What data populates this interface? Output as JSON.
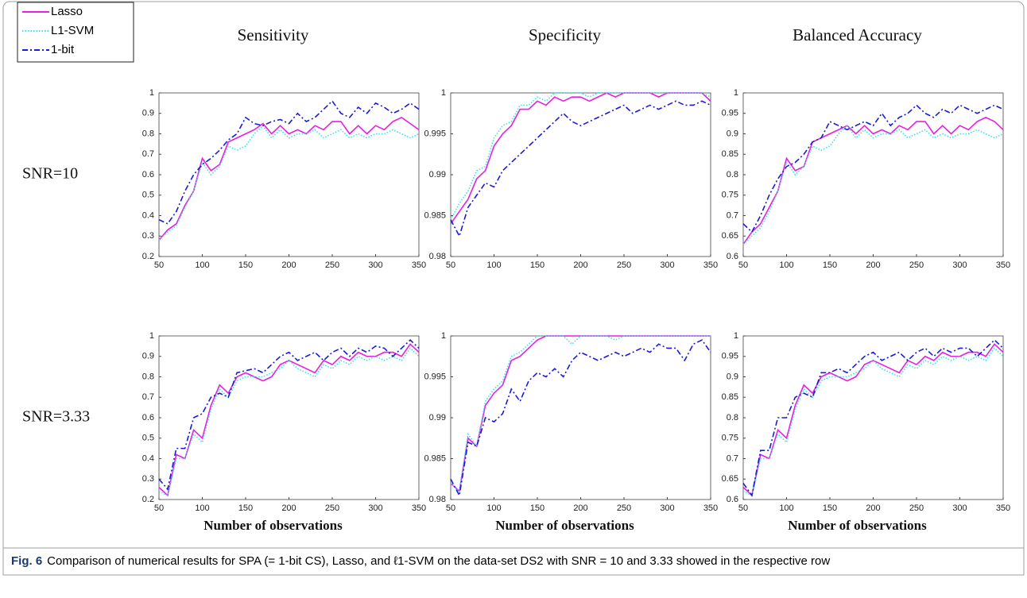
{
  "caption": {
    "label": "Fig. 6",
    "text": "Comparison of numerical results for SPA (= 1-bit CS), Lasso, and ℓ1-SVM on the data-set DS2 with SNR = 10 and 3.33 showed in the respective row"
  },
  "chart_data": [
    {
      "type": "line",
      "title": "Sensitivity",
      "row_label": "SNR=10",
      "x": [
        50,
        60,
        70,
        80,
        90,
        100,
        110,
        120,
        130,
        140,
        150,
        160,
        170,
        180,
        190,
        200,
        210,
        220,
        230,
        240,
        250,
        260,
        270,
        280,
        290,
        300,
        310,
        320,
        330,
        340,
        350
      ],
      "xlim": [
        50,
        350
      ],
      "xticks": [
        50,
        100,
        150,
        200,
        250,
        300,
        350
      ],
      "ylim": [
        0.2,
        1
      ],
      "yticks": [
        0.2,
        0.3,
        0.4,
        0.5,
        0.6,
        0.7,
        0.8,
        0.9,
        1
      ],
      "series": [
        {
          "name": "Lasso",
          "color": "#e81ee0",
          "style": "solid",
          "values": [
            0.28,
            0.33,
            0.36,
            0.45,
            0.52,
            0.68,
            0.62,
            0.65,
            0.76,
            0.78,
            0.8,
            0.82,
            0.85,
            0.8,
            0.84,
            0.8,
            0.82,
            0.8,
            0.84,
            0.82,
            0.86,
            0.86,
            0.8,
            0.84,
            0.8,
            0.84,
            0.82,
            0.86,
            0.88,
            0.85,
            0.82
          ]
        },
        {
          "name": "L1-SVM",
          "color": "#35e3ef",
          "style": "dotted",
          "values": [
            0.28,
            0.32,
            0.35,
            0.44,
            0.52,
            0.66,
            0.6,
            0.64,
            0.74,
            0.72,
            0.74,
            0.8,
            0.84,
            0.78,
            0.82,
            0.78,
            0.8,
            0.8,
            0.82,
            0.78,
            0.8,
            0.82,
            0.78,
            0.8,
            0.78,
            0.8,
            0.8,
            0.82,
            0.8,
            0.78,
            0.8
          ]
        },
        {
          "name": "1-bit",
          "color": "#1a1adb",
          "style": "dashdot",
          "values": [
            0.38,
            0.36,
            0.42,
            0.52,
            0.6,
            0.65,
            0.68,
            0.72,
            0.77,
            0.8,
            0.88,
            0.85,
            0.84,
            0.86,
            0.87,
            0.85,
            0.9,
            0.86,
            0.88,
            0.92,
            0.96,
            0.9,
            0.88,
            0.93,
            0.9,
            0.95,
            0.93,
            0.9,
            0.92,
            0.95,
            0.92
          ]
        }
      ]
    },
    {
      "type": "line",
      "title": "Specificity",
      "x": [
        50,
        60,
        70,
        80,
        90,
        100,
        110,
        120,
        130,
        140,
        150,
        160,
        170,
        180,
        190,
        200,
        210,
        220,
        230,
        240,
        250,
        260,
        270,
        280,
        290,
        300,
        310,
        320,
        330,
        340,
        350
      ],
      "xlim": [
        50,
        350
      ],
      "xticks": [
        50,
        100,
        150,
        200,
        250,
        300,
        350
      ],
      "ylim": [
        0.98,
        1
      ],
      "yticks": [
        0.98,
        0.985,
        0.99,
        0.995,
        1
      ],
      "series": [
        {
          "name": "Lasso",
          "color": "#e81ee0",
          "style": "solid",
          "values": [
            0.984,
            0.9855,
            0.987,
            0.9895,
            0.9905,
            0.9935,
            0.995,
            0.996,
            0.998,
            0.998,
            0.999,
            0.9985,
            0.9995,
            0.999,
            0.9995,
            0.9995,
            0.999,
            0.9995,
            1,
            0.9995,
            1,
            1,
            1,
            1,
            0.9995,
            1,
            1,
            1,
            1,
            1,
            0.999
          ]
        },
        {
          "name": "L1-SVM",
          "color": "#35e3ef",
          "style": "dotted",
          "values": [
            0.9845,
            0.9865,
            0.988,
            0.9905,
            0.991,
            0.9945,
            0.996,
            0.9965,
            0.9985,
            0.9985,
            0.9995,
            0.999,
            1,
            1,
            1,
            1,
            0.9995,
            1,
            1,
            1,
            1,
            1,
            1,
            1,
            1,
            1,
            1,
            1,
            1,
            1,
            0.9995
          ]
        },
        {
          "name": "1-bit",
          "color": "#1a1adb",
          "style": "dashdot",
          "values": [
            0.9845,
            0.9825,
            0.986,
            0.9875,
            0.989,
            0.9885,
            0.9905,
            0.9915,
            0.9925,
            0.9935,
            0.9945,
            0.9955,
            0.9965,
            0.9975,
            0.9965,
            0.996,
            0.9965,
            0.997,
            0.9975,
            0.998,
            0.9985,
            0.9975,
            0.998,
            0.9985,
            0.998,
            0.9985,
            0.999,
            0.9985,
            0.9985,
            0.999,
            0.9985
          ]
        }
      ]
    },
    {
      "type": "line",
      "title": "Balanced Accuracy",
      "x": [
        50,
        60,
        70,
        80,
        90,
        100,
        110,
        120,
        130,
        140,
        150,
        160,
        170,
        180,
        190,
        200,
        210,
        220,
        230,
        240,
        250,
        260,
        270,
        280,
        290,
        300,
        310,
        320,
        330,
        340,
        350
      ],
      "xlim": [
        50,
        350
      ],
      "xticks": [
        50,
        100,
        150,
        200,
        250,
        300,
        350
      ],
      "ylim": [
        0.6,
        1
      ],
      "yticks": [
        0.6,
        0.65,
        0.7,
        0.75,
        0.8,
        0.85,
        0.9,
        0.95,
        1
      ],
      "series": [
        {
          "name": "Lasso",
          "color": "#e81ee0",
          "style": "solid",
          "values": [
            0.63,
            0.66,
            0.68,
            0.72,
            0.76,
            0.84,
            0.81,
            0.82,
            0.88,
            0.89,
            0.9,
            0.91,
            0.92,
            0.9,
            0.92,
            0.9,
            0.91,
            0.9,
            0.92,
            0.91,
            0.93,
            0.93,
            0.9,
            0.92,
            0.9,
            0.92,
            0.91,
            0.93,
            0.94,
            0.93,
            0.91
          ]
        },
        {
          "name": "L1-SVM",
          "color": "#35e3ef",
          "style": "dotted",
          "values": [
            0.63,
            0.65,
            0.67,
            0.71,
            0.76,
            0.83,
            0.8,
            0.82,
            0.87,
            0.86,
            0.87,
            0.9,
            0.92,
            0.89,
            0.91,
            0.89,
            0.9,
            0.9,
            0.91,
            0.89,
            0.9,
            0.91,
            0.89,
            0.9,
            0.89,
            0.9,
            0.9,
            0.91,
            0.9,
            0.89,
            0.9
          ]
        },
        {
          "name": "1-bit",
          "color": "#1a1adb",
          "style": "dashdot",
          "values": [
            0.68,
            0.66,
            0.7,
            0.75,
            0.79,
            0.82,
            0.83,
            0.85,
            0.88,
            0.89,
            0.93,
            0.92,
            0.91,
            0.92,
            0.93,
            0.92,
            0.95,
            0.92,
            0.94,
            0.95,
            0.97,
            0.95,
            0.94,
            0.96,
            0.95,
            0.97,
            0.96,
            0.95,
            0.96,
            0.97,
            0.96
          ]
        }
      ]
    },
    {
      "type": "line",
      "row_label": "SNR=3.33",
      "xlabel": "Number of observations",
      "x": [
        50,
        60,
        70,
        80,
        90,
        100,
        110,
        120,
        130,
        140,
        150,
        160,
        170,
        180,
        190,
        200,
        210,
        220,
        230,
        240,
        250,
        260,
        270,
        280,
        290,
        300,
        310,
        320,
        330,
        340,
        350
      ],
      "xlim": [
        50,
        350
      ],
      "xticks": [
        50,
        100,
        150,
        200,
        250,
        300,
        350
      ],
      "ylim": [
        0.2,
        1
      ],
      "yticks": [
        0.2,
        0.3,
        0.4,
        0.5,
        0.6,
        0.7,
        0.8,
        0.9,
        1
      ],
      "series": [
        {
          "name": "Lasso",
          "color": "#e81ee0",
          "style": "solid",
          "values": [
            0.26,
            0.22,
            0.42,
            0.4,
            0.54,
            0.5,
            0.66,
            0.76,
            0.72,
            0.8,
            0.82,
            0.8,
            0.78,
            0.8,
            0.86,
            0.88,
            0.86,
            0.84,
            0.82,
            0.88,
            0.86,
            0.9,
            0.88,
            0.92,
            0.9,
            0.9,
            0.92,
            0.92,
            0.9,
            0.96,
            0.92
          ]
        },
        {
          "name": "L1-SVM",
          "color": "#35e3ef",
          "style": "dotted",
          "values": [
            0.24,
            0.22,
            0.4,
            0.4,
            0.52,
            0.48,
            0.64,
            0.74,
            0.7,
            0.78,
            0.8,
            0.8,
            0.8,
            0.82,
            0.84,
            0.88,
            0.84,
            0.82,
            0.8,
            0.86,
            0.84,
            0.88,
            0.86,
            0.9,
            0.88,
            0.9,
            0.88,
            0.9,
            0.88,
            0.94,
            0.9
          ]
        },
        {
          "name": "1-bit",
          "color": "#1a1adb",
          "style": "dashdot",
          "values": [
            0.3,
            0.25,
            0.45,
            0.45,
            0.6,
            0.62,
            0.7,
            0.72,
            0.7,
            0.82,
            0.83,
            0.84,
            0.82,
            0.86,
            0.9,
            0.92,
            0.88,
            0.9,
            0.92,
            0.88,
            0.92,
            0.94,
            0.9,
            0.94,
            0.92,
            0.95,
            0.94,
            0.9,
            0.94,
            0.98,
            0.94
          ]
        }
      ]
    },
    {
      "type": "line",
      "xlabel": "Number of observations",
      "x": [
        50,
        60,
        70,
        80,
        90,
        100,
        110,
        120,
        130,
        140,
        150,
        160,
        170,
        180,
        190,
        200,
        210,
        220,
        230,
        240,
        250,
        260,
        270,
        280,
        290,
        300,
        310,
        320,
        330,
        340,
        350
      ],
      "xlim": [
        50,
        350
      ],
      "xticks": [
        50,
        100,
        150,
        200,
        250,
        300,
        350
      ],
      "ylim": [
        0.98,
        1
      ],
      "yticks": [
        0.98,
        0.985,
        0.99,
        0.995,
        1
      ],
      "series": [
        {
          "name": "Lasso",
          "color": "#e81ee0",
          "style": "solid",
          "values": [
            0.982,
            0.981,
            0.9875,
            0.9865,
            0.9915,
            0.993,
            0.994,
            0.997,
            0.9975,
            0.9985,
            0.9995,
            1,
            1,
            1,
            1,
            1,
            1,
            1,
            1,
            1,
            1,
            1,
            1,
            1,
            1,
            1,
            1,
            1,
            1,
            1,
            1
          ]
        },
        {
          "name": "L1-SVM",
          "color": "#35e3ef",
          "style": "dotted",
          "values": [
            0.982,
            0.981,
            0.988,
            0.9865,
            0.992,
            0.9935,
            0.9945,
            0.9975,
            0.998,
            0.999,
            1,
            1,
            1,
            1,
            0.999,
            1,
            1,
            1,
            1,
            0.9995,
            1,
            1,
            1,
            1,
            1,
            1,
            1,
            1,
            1,
            1,
            1
          ]
        },
        {
          "name": "1-bit",
          "color": "#1a1adb",
          "style": "dashdot",
          "values": [
            0.9825,
            0.9805,
            0.987,
            0.9865,
            0.99,
            0.9895,
            0.9905,
            0.9935,
            0.992,
            0.9945,
            0.9955,
            0.995,
            0.996,
            0.995,
            0.997,
            0.998,
            0.9975,
            0.997,
            0.9975,
            0.998,
            0.9975,
            0.998,
            0.9985,
            0.998,
            0.999,
            0.9985,
            0.9985,
            0.997,
            0.999,
            0.9995,
            0.998
          ]
        }
      ]
    },
    {
      "type": "line",
      "xlabel": "Number of observations",
      "x": [
        50,
        60,
        70,
        80,
        90,
        100,
        110,
        120,
        130,
        140,
        150,
        160,
        170,
        180,
        190,
        200,
        210,
        220,
        230,
        240,
        250,
        260,
        270,
        280,
        290,
        300,
        310,
        320,
        330,
        340,
        350
      ],
      "xlim": [
        50,
        350
      ],
      "xticks": [
        50,
        100,
        150,
        200,
        250,
        300,
        350
      ],
      "ylim": [
        0.6,
        1
      ],
      "yticks": [
        0.6,
        0.65,
        0.7,
        0.75,
        0.8,
        0.85,
        0.9,
        0.95,
        1
      ],
      "series": [
        {
          "name": "Lasso",
          "color": "#e81ee0",
          "style": "solid",
          "values": [
            0.63,
            0.61,
            0.71,
            0.7,
            0.77,
            0.75,
            0.83,
            0.88,
            0.86,
            0.9,
            0.91,
            0.9,
            0.89,
            0.9,
            0.93,
            0.94,
            0.93,
            0.92,
            0.91,
            0.94,
            0.93,
            0.95,
            0.94,
            0.96,
            0.95,
            0.95,
            0.96,
            0.96,
            0.95,
            0.98,
            0.96
          ]
        },
        {
          "name": "L1-SVM",
          "color": "#35e3ef",
          "style": "dotted",
          "values": [
            0.62,
            0.61,
            0.7,
            0.7,
            0.76,
            0.74,
            0.82,
            0.87,
            0.85,
            0.89,
            0.9,
            0.9,
            0.9,
            0.91,
            0.92,
            0.94,
            0.92,
            0.91,
            0.9,
            0.93,
            0.92,
            0.94,
            0.93,
            0.95,
            0.94,
            0.95,
            0.94,
            0.95,
            0.94,
            0.97,
            0.95
          ]
        },
        {
          "name": "1-bit",
          "color": "#1a1adb",
          "style": "dashdot",
          "values": [
            0.64,
            0.61,
            0.72,
            0.72,
            0.8,
            0.8,
            0.85,
            0.86,
            0.85,
            0.91,
            0.91,
            0.92,
            0.91,
            0.93,
            0.95,
            0.96,
            0.94,
            0.95,
            0.96,
            0.94,
            0.96,
            0.97,
            0.95,
            0.97,
            0.96,
            0.97,
            0.97,
            0.95,
            0.97,
            0.99,
            0.97
          ]
        }
      ]
    }
  ]
}
